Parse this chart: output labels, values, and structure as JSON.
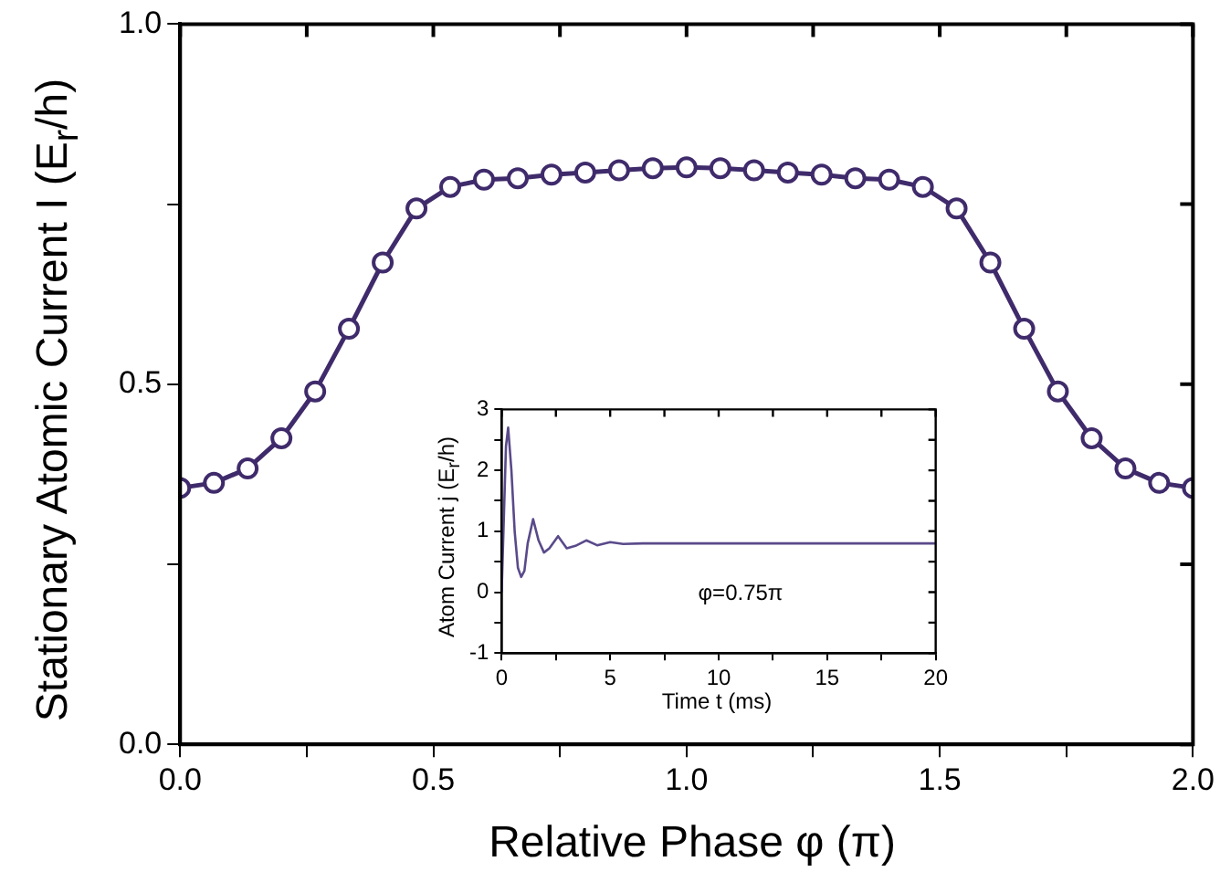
{
  "chart_data": [
    {
      "type": "line",
      "xlabel": "Relative Phase φ (π)",
      "ylabel": "Stationary Atomic Current I (E$_{r}$/h)",
      "marker": "circle",
      "line_style": "solid",
      "grid": false,
      "legend": false,
      "x": [
        0,
        0.0667,
        0.1333,
        0.2,
        0.2667,
        0.3333,
        0.4,
        0.4667,
        0.5333,
        0.6,
        0.6667,
        0.7333,
        0.8,
        0.8667,
        0.9333,
        1,
        1.0667,
        1.1333,
        1.2,
        1.2667,
        1.3333,
        1.4,
        1.4667,
        1.5333,
        1.6,
        1.6667,
        1.7333,
        1.8,
        1.8667,
        1.9333,
        2
      ],
      "series": [
        {
          "color": "#3f2b6b",
          "values": [
            0.356,
            0.363,
            0.383,
            0.425,
            0.49,
            0.577,
            0.669,
            0.744,
            0.774,
            0.784,
            0.786,
            0.791,
            0.794,
            0.797,
            0.8,
            0.801,
            0.8,
            0.797,
            0.794,
            0.791,
            0.786,
            0.784,
            0.774,
            0.744,
            0.669,
            0.577,
            0.49,
            0.425,
            0.383,
            0.363,
            0.356
          ]
        }
      ],
      "xlim": [
        0,
        2
      ],
      "xticks": [
        {
          "value": 0,
          "label": "0.0"
        },
        {
          "value": 0.25,
          "label": null
        },
        {
          "value": 0.5,
          "label": "0.5"
        },
        {
          "value": 0.75,
          "label": null
        },
        {
          "value": 1,
          "label": "1.0"
        },
        {
          "value": 1.25,
          "label": null
        },
        {
          "value": 1.5,
          "label": "1.5"
        },
        {
          "value": 1.75,
          "label": null
        },
        {
          "value": 2,
          "label": "2.0"
        }
      ],
      "ylim": [
        0,
        1
      ],
      "yticks": [
        {
          "value": 0,
          "label": "0.0"
        },
        {
          "value": 0.25,
          "label": null
        },
        {
          "value": 0.5,
          "label": "0.5"
        },
        {
          "value": 0.75,
          "label": null
        },
        {
          "value": 1,
          "label": "1.0"
        }
      ]
    },
    {
      "type": "line",
      "xlabel": "Time t (ms)",
      "ylabel": "Atom Current j (E$_{r}$/h)",
      "marker": "none",
      "line_style": "solid",
      "grid": false,
      "legend": false,
      "annotations": [
        "φ=0.75π"
      ],
      "x": [
        0,
        0.1,
        0.2,
        0.3,
        0.45,
        0.6,
        0.75,
        0.9,
        1.05,
        1.2,
        1.45,
        1.7,
        1.95,
        2.2,
        2.6,
        3.0,
        3.4,
        3.9,
        4.4,
        5.0,
        5.6,
        6.5,
        8,
        20
      ],
      "series": [
        {
          "color": "#5a4a8a",
          "values": [
            0,
            1.2,
            2.4,
            2.7,
            2.0,
            1.0,
            0.4,
            0.25,
            0.35,
            0.8,
            1.2,
            0.85,
            0.65,
            0.72,
            0.92,
            0.72,
            0.76,
            0.85,
            0.77,
            0.82,
            0.79,
            0.8,
            0.8,
            0.8
          ]
        }
      ],
      "xlim": [
        0,
        20
      ],
      "xticks": [
        0,
        {
          "value": 2.5,
          "label": null
        },
        5,
        {
          "value": 7.5,
          "label": null
        },
        10,
        {
          "value": 12.5,
          "label": null
        },
        15,
        {
          "value": 17.5,
          "label": null
        },
        20
      ],
      "ylim": [
        -1,
        3
      ],
      "yticks": [
        -1,
        {
          "value": -0.5,
          "label": null
        },
        0,
        {
          "value": 0.5,
          "label": null
        },
        1,
        {
          "value": 1.5,
          "label": null
        },
        2,
        {
          "value": 2.5,
          "label": null
        },
        3
      ]
    }
  ]
}
